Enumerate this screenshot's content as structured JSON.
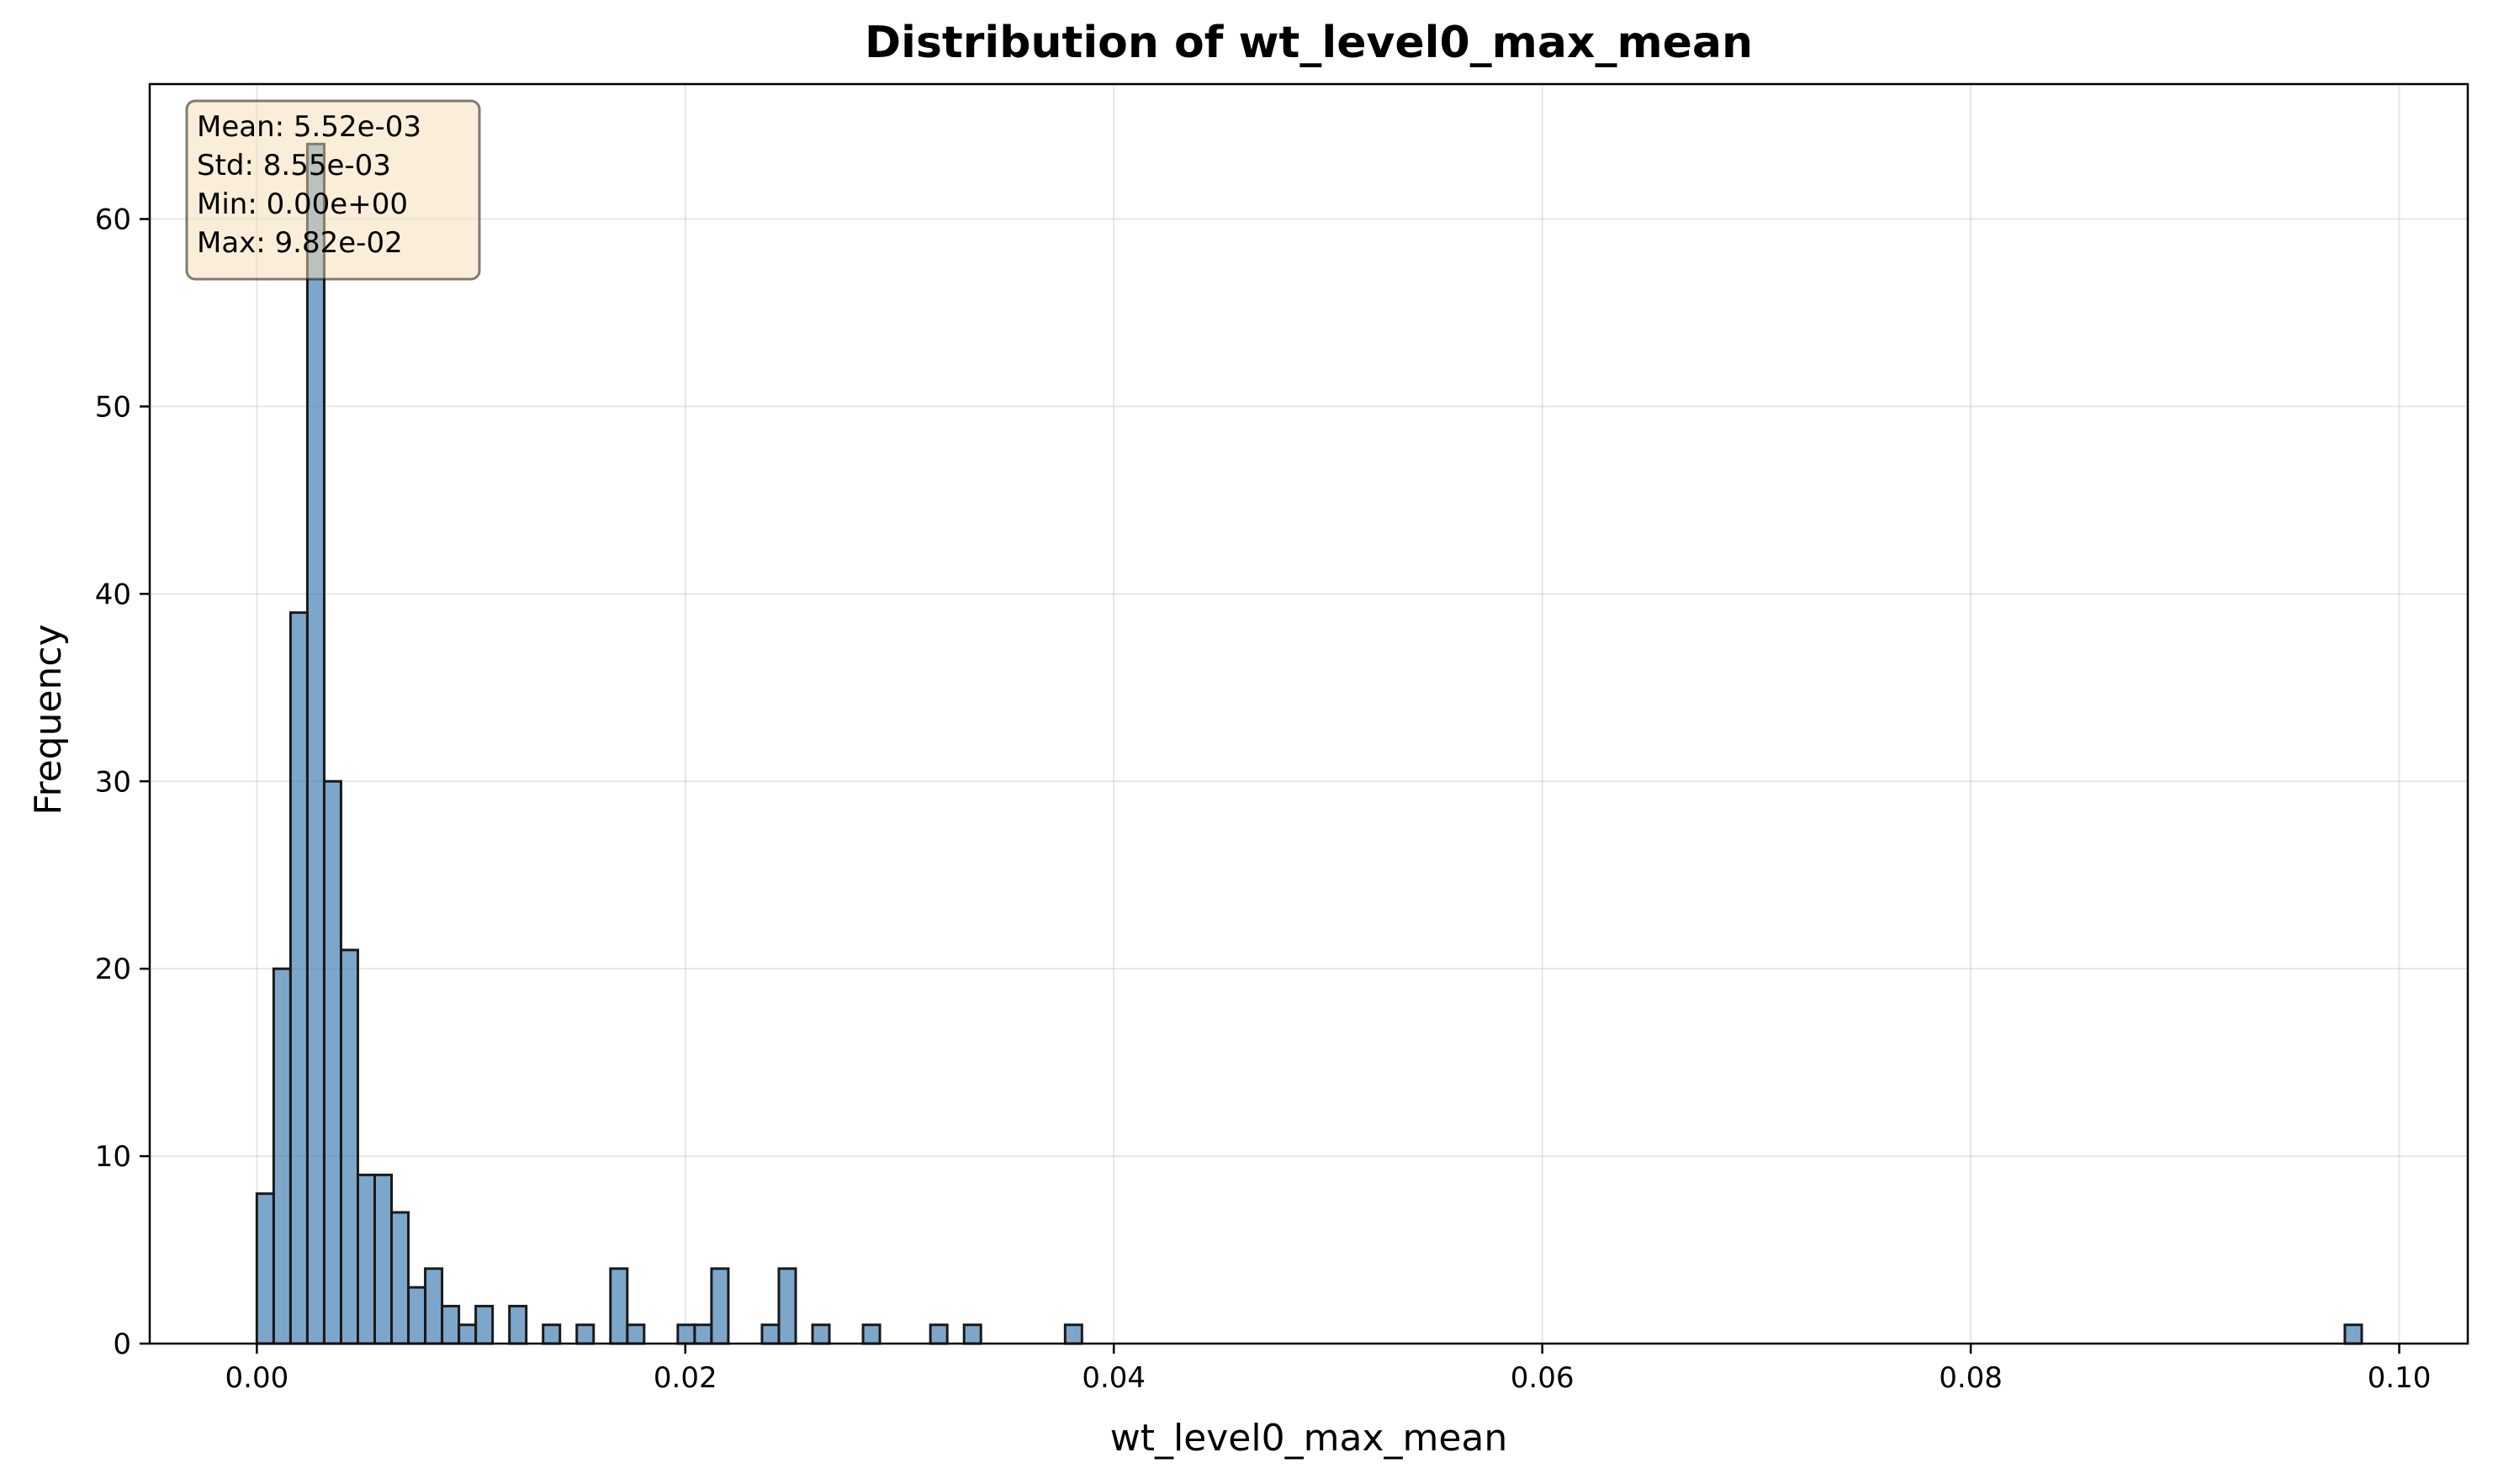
{
  "chart_data": {
    "type": "bar",
    "title": "Distribution of wt_level0_max_mean",
    "xlabel": "wt_level0_max_mean",
    "ylabel": "Frequency",
    "xlim": [
      -0.005,
      0.1032
    ],
    "ylim": [
      0,
      67.2
    ],
    "x_ticks": [
      0.0,
      0.02,
      0.04,
      0.06,
      0.08,
      0.1
    ],
    "x_tick_labels": [
      "0.00",
      "0.02",
      "0.04",
      "0.06",
      "0.08",
      "0.10"
    ],
    "y_ticks": [
      0,
      10,
      20,
      30,
      40,
      50,
      60
    ],
    "y_tick_labels": [
      "0",
      "10",
      "20",
      "30",
      "40",
      "50",
      "60"
    ],
    "grid": true,
    "bin_width": 0.000786,
    "bar_color": "#4682b4",
    "bar_opacity": 0.7,
    "bar_edge_color": "#000000",
    "bins": [
      {
        "x0": 0.0,
        "count": 8
      },
      {
        "x0": 0.000786,
        "count": 20
      },
      {
        "x0": 0.001572,
        "count": 39
      },
      {
        "x0": 0.002358,
        "count": 64
      },
      {
        "x0": 0.003144,
        "count": 30
      },
      {
        "x0": 0.00393,
        "count": 21
      },
      {
        "x0": 0.004716,
        "count": 9
      },
      {
        "x0": 0.005502,
        "count": 9
      },
      {
        "x0": 0.006288,
        "count": 7
      },
      {
        "x0": 0.007074,
        "count": 3
      },
      {
        "x0": 0.00786,
        "count": 4
      },
      {
        "x0": 0.008646,
        "count": 2
      },
      {
        "x0": 0.009432,
        "count": 1
      },
      {
        "x0": 0.010218,
        "count": 2
      },
      {
        "x0": 0.01179,
        "count": 2
      },
      {
        "x0": 0.013362,
        "count": 1
      },
      {
        "x0": 0.014934,
        "count": 1
      },
      {
        "x0": 0.016506,
        "count": 4
      },
      {
        "x0": 0.017292,
        "count": 1
      },
      {
        "x0": 0.01965,
        "count": 1
      },
      {
        "x0": 0.020436,
        "count": 1
      },
      {
        "x0": 0.021222,
        "count": 4
      },
      {
        "x0": 0.02358,
        "count": 1
      },
      {
        "x0": 0.024366,
        "count": 4
      },
      {
        "x0": 0.025938,
        "count": 1
      },
      {
        "x0": 0.028296,
        "count": 1
      },
      {
        "x0": 0.03144,
        "count": 1
      },
      {
        "x0": 0.033012,
        "count": 1
      },
      {
        "x0": 0.037728,
        "count": 1
      },
      {
        "x0": 0.097464,
        "count": 1
      }
    ],
    "stats_box": {
      "lines": [
        "Mean: 5.52e-03",
        "Std: 8.55e-03",
        "Min: 0.00e+00",
        "Max: 9.82e-02"
      ],
      "background": "#f5deb3",
      "position": "top-left"
    }
  }
}
